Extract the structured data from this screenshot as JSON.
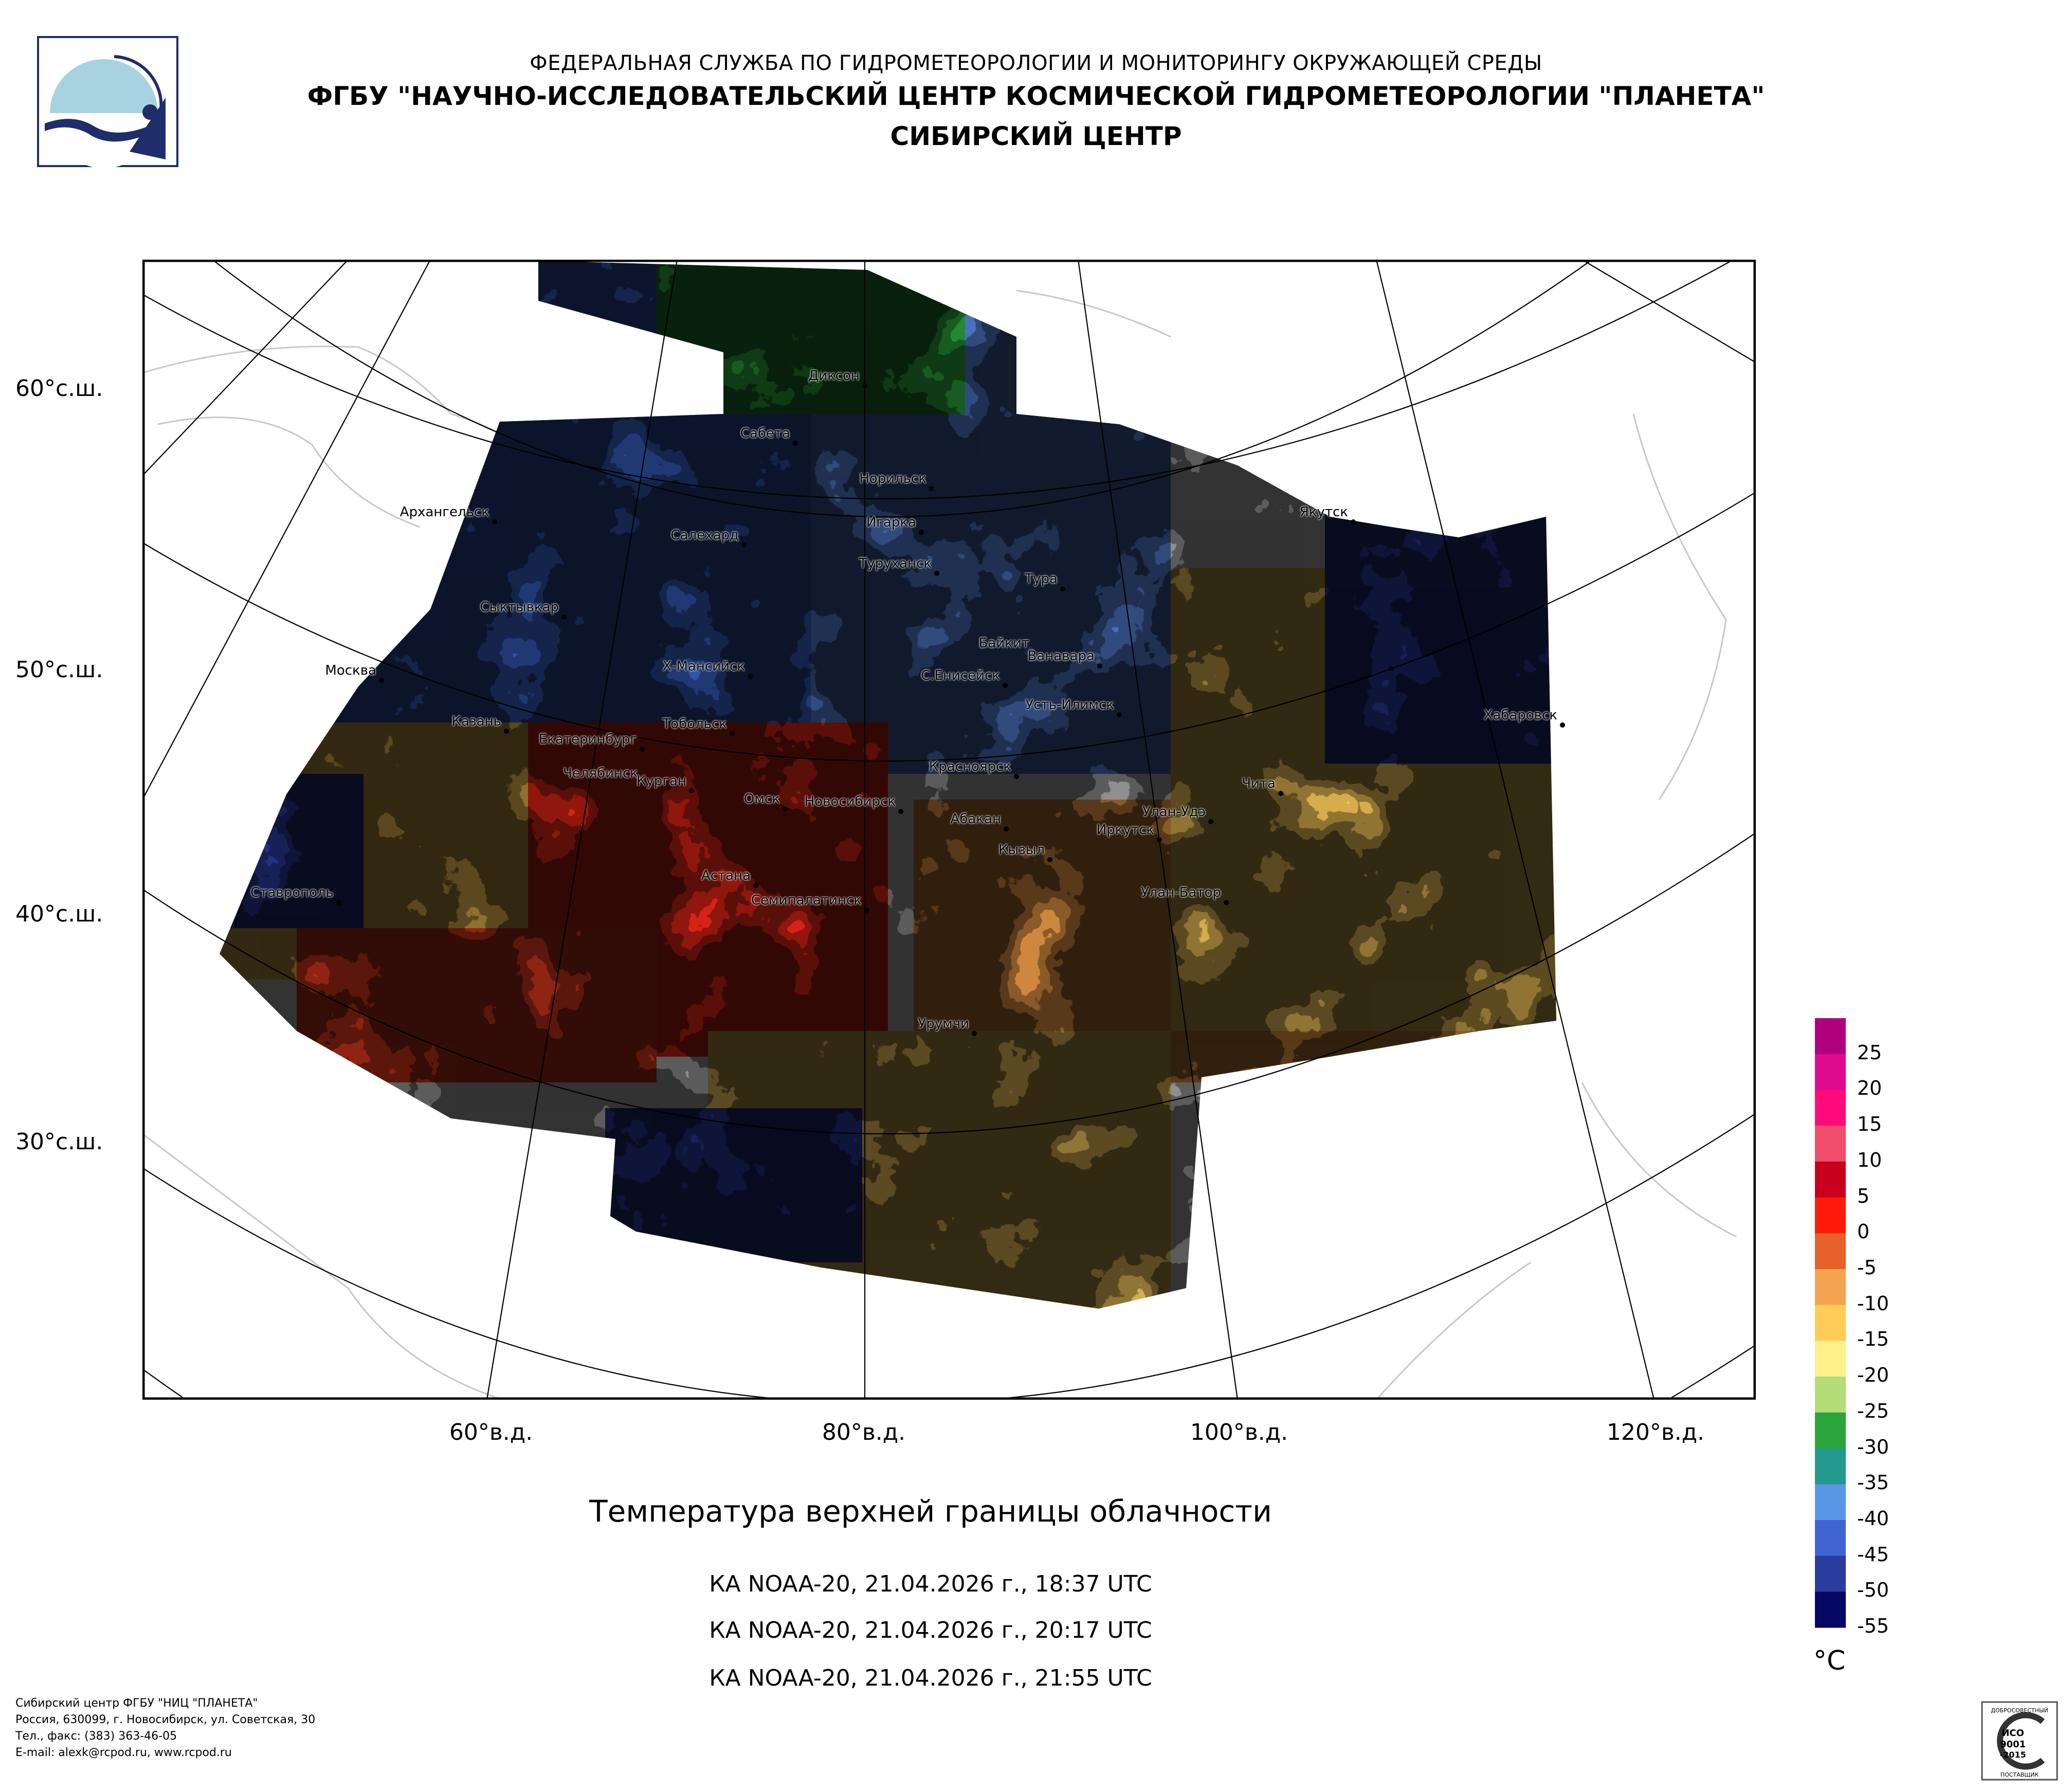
{
  "header": {
    "line1": "ФЕДЕРАЛЬНАЯ СЛУЖБА ПО ГИДРОМЕТЕОРОЛОГИИ И МОНИТОРИНГУ ОКРУЖАЮЩЕЙ СРЕДЫ",
    "line2": "ФГБУ \"НАУЧНО-ИССЛЕДОВАТЕЛЬСКИЙ ЦЕНТР КОСМИЧЕСКОЙ ГИДРОМЕТЕОРОЛОГИИ \"ПЛАНЕТА\"",
    "line3": "СИБИРСКИЙ ЦЕНТР"
  },
  "map": {
    "title": "Температура верхней границы облачности",
    "passes": [
      "КА NOAA-20, 21.04.2026 г., 18:37 UTC",
      "КА NOAA-20, 21.04.2026 г., 20:17 UTC",
      "КА NOAA-20, 21.04.2026 г., 21:55 UTC"
    ],
    "lat_labels": [
      "60°с.ш.",
      "50°с.ш.",
      "40°с.ш.",
      "30°с.ш."
    ],
    "lon_labels": [
      "60°в.д.",
      "80°в.д.",
      "100°в.д.",
      "120°в.д."
    ],
    "cities": [
      "Диксон",
      "Сабета",
      "Норильск",
      "Игарка",
      "Архангельск",
      "Салехард",
      "Туруханск",
      "Якутск",
      "Тура",
      "Сыктывкар",
      "Байкит",
      "Ванавара",
      "Москва",
      "Х-Мансийск",
      "С.Енисейск",
      "Усть-Илимск",
      "Хабаровск",
      "Казань",
      "Тобольск",
      "Екатеринбург",
      "Красноярск",
      "Челябинск",
      "Курган",
      "Чита",
      "Омск",
      "Новосибирск",
      "Улан-Удэ",
      "Абакан",
      "Иркутск",
      "Кызыл",
      "Астана",
      "Ставрополь",
      "Семипалатинск",
      "Улан-Батор",
      "Урумчи"
    ]
  },
  "legend": {
    "unit": "°C",
    "labels": [
      "25",
      "20",
      "15",
      "10",
      "5",
      "0",
      "-5",
      "-10",
      "-15",
      "-20",
      "-25",
      "-30",
      "-35",
      "-40",
      "-45",
      "-50",
      "-55"
    ],
    "colors": [
      "#b0007f",
      "#df0b8d",
      "#ff0a7a",
      "#f04d6a",
      "#c8001e",
      "#ff1a0a",
      "#e8602a",
      "#f4a450",
      "#ffcc55",
      "#fff08a",
      "#b4dc78",
      "#2aa43c",
      "#22998c",
      "#5a96e6",
      "#4064d2",
      "#2a3c9c",
      "#060664"
    ]
  },
  "footer": [
    "Сибирский центр ФГБУ \"НИЦ \"ПЛАНЕТА\"",
    "Россия, 630099, г. Новосибирск, ул. Советская, 30",
    "Тел., факс: (383) 363-46-05",
    "E-mail: alexk@rcpod.ru, www.rcpod.ru"
  ],
  "certificate": {
    "lines": [
      "ДОБРОСОВЕСТНЫЙ",
      "ИСО",
      "9001",
      "-2015",
      "ПОСТАВЩИК"
    ]
  }
}
